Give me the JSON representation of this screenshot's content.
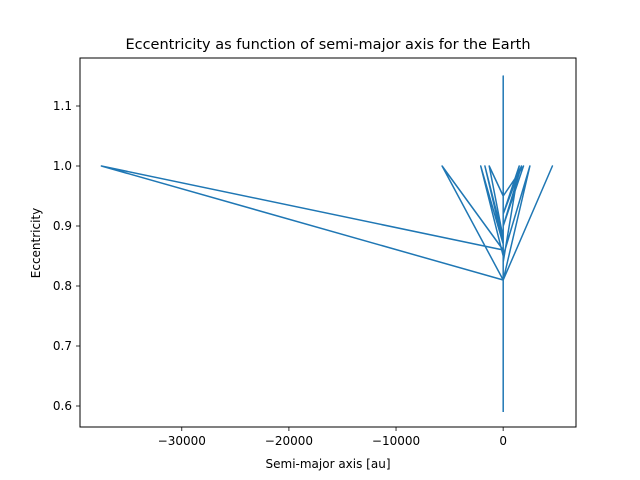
{
  "chart_data": {
    "type": "line",
    "title": "Eccentricity as function of semi-major axis for the Earth",
    "xlabel": "Semi-major axis [au]",
    "ylabel": "Eccentricity",
    "xlim": [
      -39500,
      6800
    ],
    "ylim": [
      0.565,
      1.18
    ],
    "xticks": [
      {
        "value": -30000,
        "label": "−30000"
      },
      {
        "value": -20000,
        "label": "−20000"
      },
      {
        "value": -10000,
        "label": "−10000"
      },
      {
        "value": 0,
        "label": "0"
      }
    ],
    "yticks": [
      {
        "value": 0.6,
        "label": "0.6"
      },
      {
        "value": 0.7,
        "label": "0.7"
      },
      {
        "value": 0.8,
        "label": "0.8"
      },
      {
        "value": 0.9,
        "label": "0.9"
      },
      {
        "value": 1.0,
        "label": "1.0"
      },
      {
        "value": 1.1,
        "label": "1.1"
      }
    ],
    "grid": false,
    "series": [
      {
        "color": "#1f77b4",
        "x": [
          0,
          0,
          0,
          -37500,
          0,
          -37500,
          0,
          0,
          -5700,
          0,
          4600,
          0,
          2500,
          0,
          -2100,
          0,
          -1700,
          0,
          -1300,
          0,
          1900,
          0,
          1700,
          0,
          1500,
          0,
          0,
          0,
          0,
          0,
          0,
          0,
          0,
          0,
          0,
          0
        ],
        "y": [
          0.59,
          0.59,
          0.81,
          1.0,
          0.86,
          1.0,
          0.81,
          0.86,
          1.0,
          0.81,
          1.0,
          0.81,
          1.0,
          0.85,
          1.0,
          0.87,
          1.0,
          0.88,
          1.0,
          0.95,
          1.0,
          0.9,
          1.0,
          0.92,
          1.0,
          0.84,
          1.15,
          0.86,
          1.12,
          0.9,
          1.1,
          0.92,
          1.08,
          0.8,
          1.04,
          0.6
        ]
      }
    ]
  }
}
